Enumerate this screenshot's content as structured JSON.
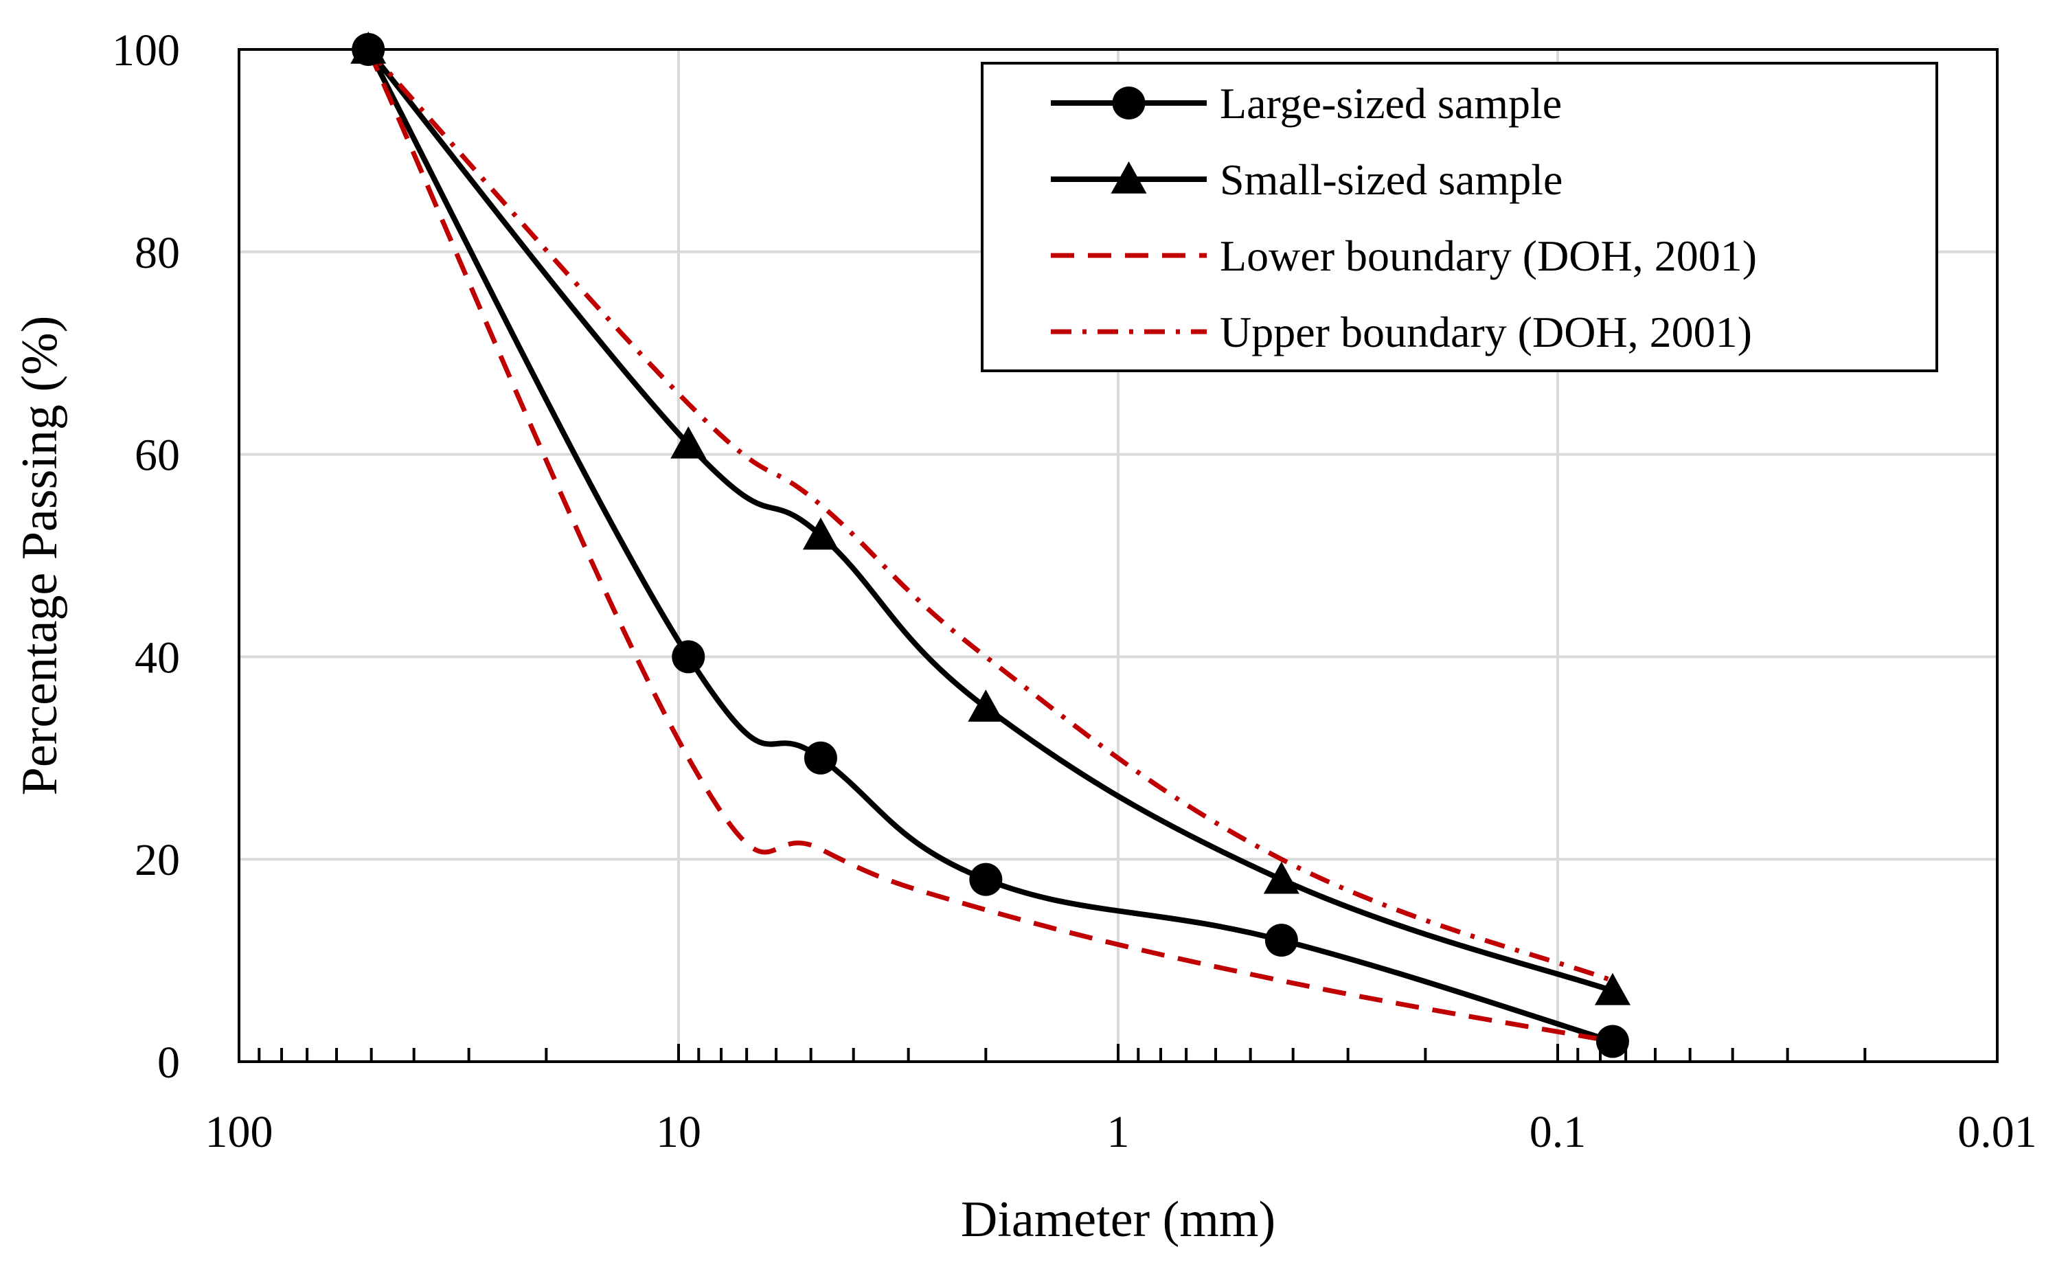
{
  "chart_data": {
    "type": "line",
    "title": "",
    "xlabel": "Diameter (mm)",
    "ylabel": "Percentage Passing (%)",
    "xscale": "log",
    "x_reversed": true,
    "xlim": [
      100,
      0.01
    ],
    "ylim": [
      0,
      100
    ],
    "grid": true,
    "legend_position": "top-right",
    "x_ticks": [
      {
        "value": 100,
        "label": "100"
      },
      {
        "value": 10,
        "label": "10"
      },
      {
        "value": 1,
        "label": "1"
      },
      {
        "value": 0.1,
        "label": "0.1"
      },
      {
        "value": 0.01,
        "label": "0.01"
      }
    ],
    "y_ticks": [
      {
        "value": 0,
        "label": "0"
      },
      {
        "value": 20,
        "label": "20"
      },
      {
        "value": 40,
        "label": "40"
      },
      {
        "value": 60,
        "label": "60"
      },
      {
        "value": 80,
        "label": "80"
      },
      {
        "value": 100,
        "label": "100"
      }
    ],
    "series": [
      {
        "name": "Large-sized sample",
        "color": "#000000",
        "style": "solid",
        "marker": "circle",
        "x": [
          50.8,
          9.5,
          4.75,
          2.0,
          0.425,
          0.075
        ],
        "y": [
          100,
          40,
          30,
          18,
          12,
          2
        ]
      },
      {
        "name": "Small-sized sample",
        "color": "#000000",
        "style": "solid",
        "marker": "triangle",
        "x": [
          50.8,
          9.5,
          4.75,
          2.0,
          0.425,
          0.075
        ],
        "y": [
          100,
          61,
          52,
          35,
          18,
          7
        ]
      },
      {
        "name": "Lower boundary (DOH, 2001)",
        "color": "#c00000",
        "style": "dashed",
        "marker": "none",
        "x": [
          50.8,
          9.5,
          4.75,
          2.0,
          0.425,
          0.075
        ],
        "y": [
          100,
          30,
          21,
          15,
          8,
          2
        ]
      },
      {
        "name": "Upper boundary (DOH, 2001)",
        "color": "#c00000",
        "style": "dashdot",
        "marker": "none",
        "x": [
          50.8,
          9.5,
          4.75,
          2.0,
          0.425,
          0.075
        ],
        "y": [
          100,
          65,
          55,
          40,
          20,
          8
        ]
      }
    ]
  }
}
